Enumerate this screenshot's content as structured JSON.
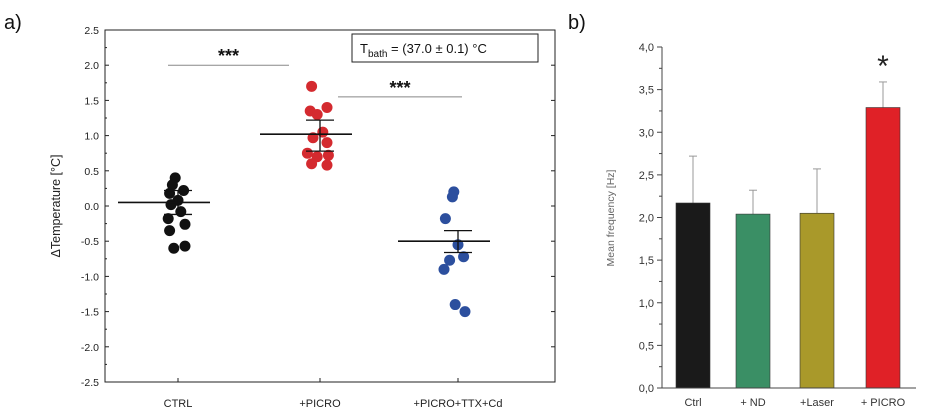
{
  "panels": {
    "a_label": "a)",
    "b_label": "b)"
  },
  "chart_data": [
    {
      "type": "scatter",
      "panel": "a)",
      "ylabel": "ΔTemperature [°C]",
      "ylim": [
        -2.5,
        2.5
      ],
      "yticks": [
        "2.5",
        "2.0",
        "1.5",
        "1.0",
        "0.5",
        "0.0",
        "-0.5",
        "-1.0",
        "-1.5",
        "-2.0",
        "-2.5"
      ],
      "ytick_values": [
        2.5,
        2.0,
        1.5,
        1.0,
        0.5,
        0.0,
        -0.5,
        -1.0,
        -1.5,
        -2.0,
        -2.5
      ],
      "annotation": {
        "main": "T",
        "sub": "bath",
        "rest": " = (37.0 ± 0.1) °C"
      },
      "significance": [
        {
          "from": 0,
          "to": 1,
          "y": 2.0,
          "label": "***"
        },
        {
          "from": 1,
          "to": 2,
          "y": 1.55,
          "label": "***"
        }
      ],
      "groups": [
        {
          "category": "CTRL",
          "color": "#111111",
          "mean": 0.05,
          "sem_hi": 0.22,
          "sem_lo": -0.12,
          "points": [
            [
              -0.02,
              0.4
            ],
            [
              -0.04,
              0.3
            ],
            [
              0.04,
              0.22
            ],
            [
              -0.06,
              0.18
            ],
            [
              0.0,
              0.08
            ],
            [
              -0.05,
              0.02
            ],
            [
              0.02,
              -0.08
            ],
            [
              -0.07,
              -0.18
            ],
            [
              0.05,
              -0.26
            ],
            [
              -0.06,
              -0.35
            ],
            [
              -0.03,
              -0.6
            ],
            [
              0.05,
              -0.57
            ]
          ]
        },
        {
          "category": "+PICRO",
          "color": "#d42a2f",
          "mean": 1.02,
          "sem_hi": 1.22,
          "sem_lo": 0.78,
          "points": [
            [
              -0.06,
              1.7
            ],
            [
              -0.07,
              1.35
            ],
            [
              0.05,
              1.4
            ],
            [
              -0.02,
              1.3
            ],
            [
              0.02,
              1.05
            ],
            [
              -0.05,
              0.97
            ],
            [
              0.05,
              0.9
            ],
            [
              -0.09,
              0.75
            ],
            [
              -0.02,
              0.7
            ],
            [
              0.06,
              0.72
            ],
            [
              -0.06,
              0.6
            ],
            [
              0.05,
              0.58
            ]
          ]
        },
        {
          "category": "+PICRO+TTX+Cd",
          "color": "#2c4f9e",
          "mean": -0.5,
          "sem_hi": -0.35,
          "sem_lo": -0.66,
          "points": [
            [
              -0.03,
              0.2
            ],
            [
              -0.04,
              0.13
            ],
            [
              -0.09,
              -0.18
            ],
            [
              0.0,
              -0.55
            ],
            [
              0.04,
              -0.72
            ],
            [
              -0.06,
              -0.77
            ],
            [
              -0.1,
              -0.9
            ],
            [
              -0.02,
              -1.4
            ],
            [
              0.05,
              -1.5
            ]
          ]
        }
      ]
    },
    {
      "type": "bar",
      "panel": "b)",
      "ylabel": "Mean frequency [Hz]",
      "ylim": [
        0,
        4
      ],
      "yticks": [
        "0,0",
        "0,5",
        "1,0",
        "1,5",
        "2,0",
        "2,5",
        "3,0",
        "3,5",
        "4,0"
      ],
      "ytick_values": [
        0,
        0.5,
        1.0,
        1.5,
        2.0,
        2.5,
        3.0,
        3.5,
        4.0
      ],
      "categories": [
        "Ctrl",
        "+ ND",
        "+Laser",
        "+ PICRO"
      ],
      "values": [
        2.17,
        2.04,
        2.05,
        3.29
      ],
      "errors": [
        0.55,
        0.28,
        0.52,
        0.3
      ],
      "colors": [
        "#1a1a1a",
        "#3a8f65",
        "#a9992a",
        "#e02127"
      ],
      "significance_label": "*",
      "significance_index": 3
    }
  ]
}
